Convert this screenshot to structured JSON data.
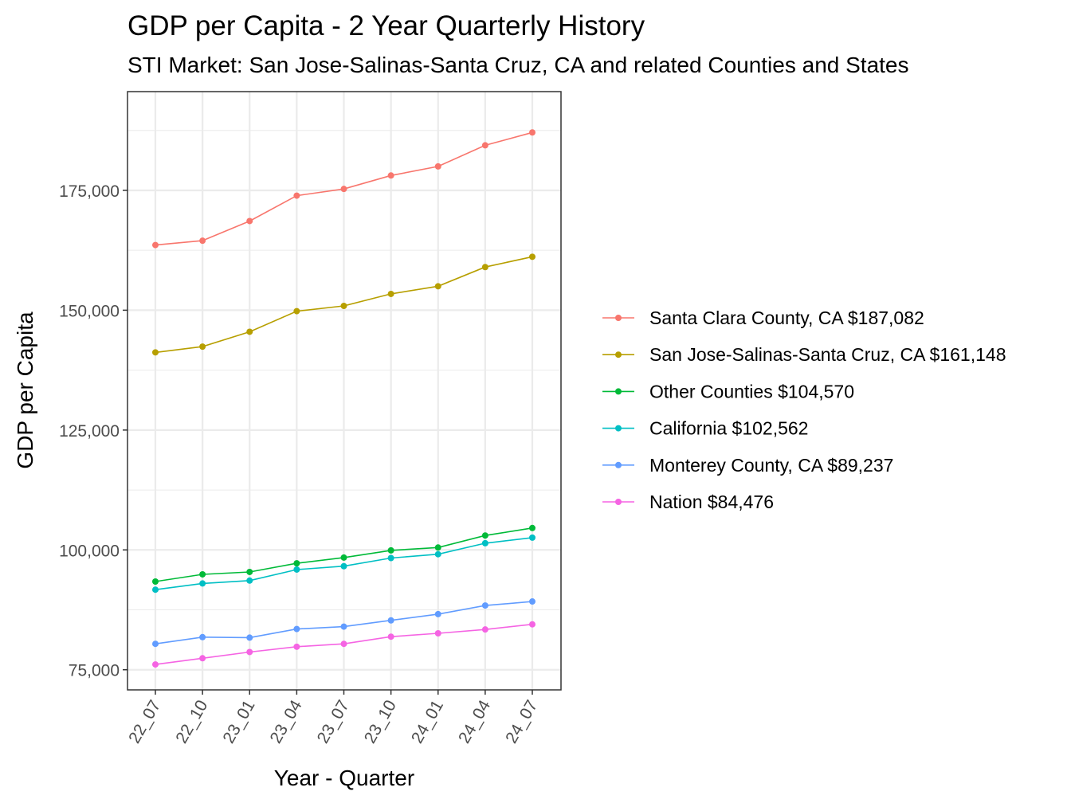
{
  "chart_data": {
    "type": "line",
    "title": "GDP per Capita - 2 Year Quarterly History",
    "subtitle": "STI Market: San Jose-Salinas-Santa Cruz, CA and related Counties and States",
    "xlabel": "Year - Quarter",
    "ylabel": "GDP per Capita",
    "categories": [
      "22_07",
      "22_10",
      "23_01",
      "23_04",
      "23_07",
      "23_10",
      "24_01",
      "24_04",
      "24_07"
    ],
    "ylim": [
      70800,
      195600
    ],
    "yticks": [
      75000,
      100000,
      125000,
      150000,
      175000
    ],
    "ytick_labels": [
      "75,000",
      "100,000",
      "125,000",
      "150,000",
      "175,000"
    ],
    "grid": true,
    "legend_position": "right",
    "series": [
      {
        "name": "Santa Clara County, CA $187,082",
        "color": "#F8766D",
        "values": [
          163600,
          164500,
          168600,
          173900,
          175300,
          178100,
          180000,
          184400,
          187082
        ]
      },
      {
        "name": "San Jose-Salinas-Santa Cruz, CA $161,148",
        "color": "#B79F00",
        "values": [
          141200,
          142400,
          145500,
          149800,
          150900,
          153400,
          155000,
          159000,
          161148
        ]
      },
      {
        "name": "Other Counties $104,570",
        "color": "#00BA38",
        "values": [
          93400,
          94900,
          95400,
          97200,
          98400,
          99900,
          100500,
          103000,
          104570
        ]
      },
      {
        "name": "California $102,562",
        "color": "#00BFC4",
        "values": [
          91700,
          93000,
          93600,
          95900,
          96600,
          98300,
          99100,
          101400,
          102562
        ]
      },
      {
        "name": "Monterey County, CA $89,237",
        "color": "#619CFF",
        "values": [
          80400,
          81800,
          81700,
          83500,
          84000,
          85300,
          86600,
          88400,
          89237
        ]
      },
      {
        "name": "Nation $84,476",
        "color": "#F564E3",
        "values": [
          76100,
          77400,
          78700,
          79800,
          80400,
          81900,
          82600,
          83400,
          84476
        ]
      }
    ]
  }
}
